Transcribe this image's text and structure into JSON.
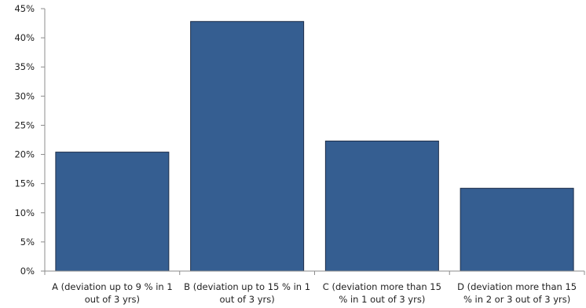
{
  "chart_data": {
    "type": "bar",
    "categories": [
      [
        "A (deviation up to 9 % in 1",
        "out of 3 yrs)"
      ],
      [
        "B (deviation up to 15 % in 1",
        "out of 3 yrs)"
      ],
      [
        "C (deviation more than 15",
        "% in 1 out of 3 yrs)"
      ],
      [
        "D (deviation more than 15",
        "% in 2 or 3 out of 3 yrs)"
      ]
    ],
    "values": [
      20.4,
      42.8,
      22.3,
      14.2
    ],
    "ylim": [
      0,
      45
    ],
    "yticks": [
      "0%",
      "5%",
      "10%",
      "15%",
      "20%",
      "25%",
      "30%",
      "35%",
      "40%",
      "45%"
    ],
    "bar_color": "#355e91",
    "axis_color": "#8c8c8c",
    "grid": false,
    "legend": "none"
  }
}
